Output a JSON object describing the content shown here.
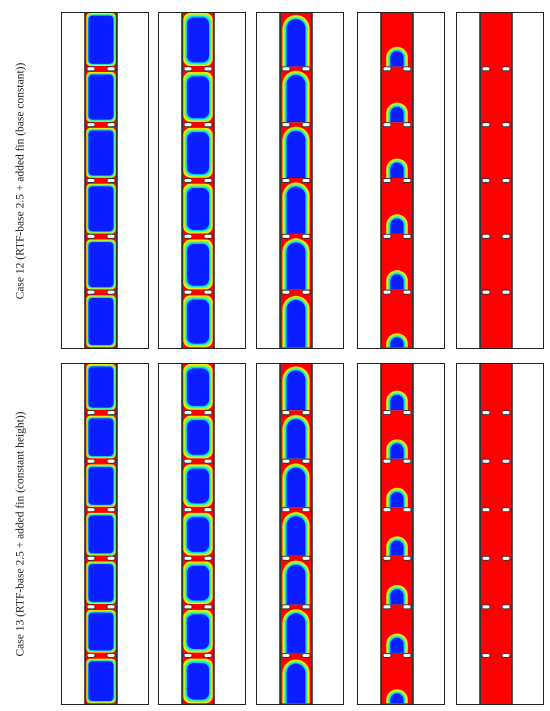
{
  "rows": [
    {
      "label": "Case 12 (RTF-base 2.5 + added fin (base constant))",
      "fin_count": 5,
      "frames": [
        {
          "state": "solid"
        },
        {
          "state": "thin_melt"
        },
        {
          "state": "domes",
          "dome_level": 0.92
        },
        {
          "state": "small_domes",
          "dome_level": 0.35
        },
        {
          "state": "liquid"
        }
      ]
    },
    {
      "label": "Case 13 (RTF-base 2.5 + added fin (constant height))",
      "fin_count": 6,
      "frames": [
        {
          "state": "solid"
        },
        {
          "state": "thin_melt"
        },
        {
          "state": "domes",
          "dome_level": 0.9
        },
        {
          "state": "small_domes",
          "dome_level": 0.4
        },
        {
          "state": "liquid"
        }
      ]
    }
  ],
  "colors": {
    "liquid": "#ff0000",
    "solid": "#0a1eff",
    "mush_1": "#00d2ff",
    "mush_2": "#5aff6e",
    "mush_3": "#ffe600",
    "wall": "#333333",
    "frame": "#222222"
  }
}
